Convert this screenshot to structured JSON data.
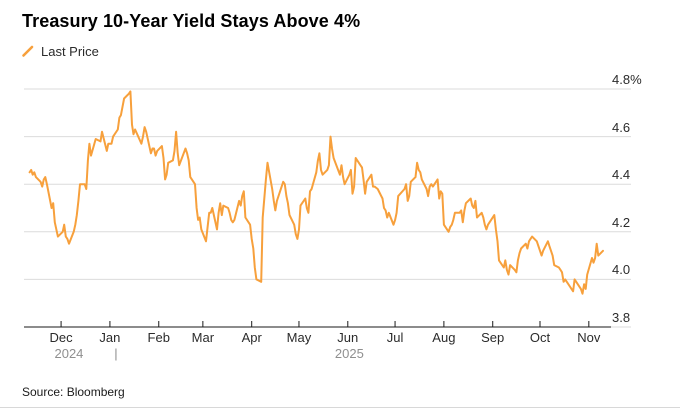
{
  "header": {
    "title": "Treasury 10-Year Yield Stays Above 4%"
  },
  "source": {
    "text": "Source: Bloomberg"
  },
  "colors": {
    "line": "#F7A03C",
    "grid": "#DBDBDB",
    "axis": "#1A1A1A",
    "tick": "#1A1A1A",
    "month_label": "#2B2B2B",
    "year_label": "#8F8F8F",
    "background": "#FFFFFF"
  },
  "chart_data": {
    "type": "line",
    "title": "Treasury 10-Year Yield Stays Above 4%",
    "unit": "%",
    "ylim": [
      3.8,
      4.8
    ],
    "grid": "horizontal",
    "legend_position": "top-left",
    "y_ticks": [
      {
        "value": 4.8,
        "label": "4.8%"
      },
      {
        "value": 4.6,
        "label": "4.6"
      },
      {
        "value": 4.4,
        "label": "4.4"
      },
      {
        "value": 4.2,
        "label": "4.2"
      },
      {
        "value": 4.0,
        "label": "4.0"
      },
      {
        "value": 3.8,
        "label": "3.8"
      }
    ],
    "x_window": [
      "2024-11-10",
      "2025-11-10"
    ],
    "x_ticks": [
      {
        "date": "2024-12-01",
        "label": "Dec"
      },
      {
        "date": "2025-01-01",
        "label": "Jan"
      },
      {
        "date": "2025-02-01",
        "label": "Feb"
      },
      {
        "date": "2025-03-01",
        "label": "Mar"
      },
      {
        "date": "2025-04-01",
        "label": "Apr"
      },
      {
        "date": "2025-05-01",
        "label": "May"
      },
      {
        "date": "2025-06-01",
        "label": "Jun"
      },
      {
        "date": "2025-07-01",
        "label": "Jul"
      },
      {
        "date": "2025-08-01",
        "label": "Aug"
      },
      {
        "date": "2025-09-01",
        "label": "Sep"
      },
      {
        "date": "2025-10-01",
        "label": "Oct"
      },
      {
        "date": "2025-11-01",
        "label": "Nov"
      }
    ],
    "year_labels": [
      {
        "label": "2024",
        "from": "2024-11-10",
        "to": "2025-01-01"
      },
      {
        "label": "|",
        "at": "2025-01-01"
      },
      {
        "label": "2025",
        "from": "2025-01-01",
        "to": "2025-11-01"
      }
    ],
    "series": [
      {
        "name": "Last Price",
        "color": "#F7A03C",
        "points": [
          [
            "2024-11-11",
            4.45
          ],
          [
            "2024-11-12",
            4.46
          ],
          [
            "2024-11-13",
            4.44
          ],
          [
            "2024-11-14",
            4.45
          ],
          [
            "2024-11-15",
            4.43
          ],
          [
            "2024-11-18",
            4.41
          ],
          [
            "2024-11-19",
            4.39
          ],
          [
            "2024-11-20",
            4.42
          ],
          [
            "2024-11-21",
            4.43
          ],
          [
            "2024-11-22",
            4.4
          ],
          [
            "2024-11-25",
            4.3
          ],
          [
            "2024-11-26",
            4.32
          ],
          [
            "2024-11-27",
            4.24
          ],
          [
            "2024-11-29",
            4.18
          ],
          [
            "2024-12-02",
            4.2
          ],
          [
            "2024-12-03",
            4.23
          ],
          [
            "2024-12-04",
            4.18
          ],
          [
            "2024-12-05",
            4.17
          ],
          [
            "2024-12-06",
            4.15
          ],
          [
            "2024-12-09",
            4.2
          ],
          [
            "2024-12-10",
            4.23
          ],
          [
            "2024-12-11",
            4.27
          ],
          [
            "2024-12-12",
            4.33
          ],
          [
            "2024-12-13",
            4.4
          ],
          [
            "2024-12-16",
            4.4
          ],
          [
            "2024-12-17",
            4.38
          ],
          [
            "2024-12-18",
            4.5
          ],
          [
            "2024-12-19",
            4.57
          ],
          [
            "2024-12-20",
            4.52
          ],
          [
            "2024-12-23",
            4.59
          ],
          [
            "2024-12-26",
            4.58
          ],
          [
            "2024-12-27",
            4.62
          ],
          [
            "2024-12-30",
            4.54
          ],
          [
            "2024-12-31",
            4.57
          ],
          [
            "2025-01-02",
            4.57
          ],
          [
            "2025-01-03",
            4.6
          ],
          [
            "2025-01-06",
            4.63
          ],
          [
            "2025-01-07",
            4.68
          ],
          [
            "2025-01-08",
            4.69
          ],
          [
            "2025-01-10",
            4.76
          ],
          [
            "2025-01-13",
            4.78
          ],
          [
            "2025-01-14",
            4.79
          ],
          [
            "2025-01-15",
            4.65
          ],
          [
            "2025-01-16",
            4.61
          ],
          [
            "2025-01-17",
            4.63
          ],
          [
            "2025-01-21",
            4.57
          ],
          [
            "2025-01-22",
            4.6
          ],
          [
            "2025-01-23",
            4.64
          ],
          [
            "2025-01-24",
            4.62
          ],
          [
            "2025-01-27",
            4.53
          ],
          [
            "2025-01-28",
            4.55
          ],
          [
            "2025-01-29",
            4.55
          ],
          [
            "2025-01-30",
            4.52
          ],
          [
            "2025-01-31",
            4.54
          ],
          [
            "2025-02-03",
            4.56
          ],
          [
            "2025-02-04",
            4.51
          ],
          [
            "2025-02-05",
            4.42
          ],
          [
            "2025-02-06",
            4.44
          ],
          [
            "2025-02-07",
            4.49
          ],
          [
            "2025-02-10",
            4.5
          ],
          [
            "2025-02-11",
            4.54
          ],
          [
            "2025-02-12",
            4.62
          ],
          [
            "2025-02-13",
            4.53
          ],
          [
            "2025-02-14",
            4.48
          ],
          [
            "2025-02-18",
            4.55
          ],
          [
            "2025-02-19",
            4.53
          ],
          [
            "2025-02-20",
            4.5
          ],
          [
            "2025-02-21",
            4.43
          ],
          [
            "2025-02-24",
            4.4
          ],
          [
            "2025-02-25",
            4.3
          ],
          [
            "2025-02-26",
            4.25
          ],
          [
            "2025-02-27",
            4.26
          ],
          [
            "2025-02-28",
            4.21
          ],
          [
            "2025-03-03",
            4.16
          ],
          [
            "2025-03-04",
            4.22
          ],
          [
            "2025-03-05",
            4.28
          ],
          [
            "2025-03-06",
            4.28
          ],
          [
            "2025-03-07",
            4.3
          ],
          [
            "2025-03-10",
            4.21
          ],
          [
            "2025-03-11",
            4.28
          ],
          [
            "2025-03-12",
            4.32
          ],
          [
            "2025-03-13",
            4.27
          ],
          [
            "2025-03-14",
            4.31
          ],
          [
            "2025-03-17",
            4.3
          ],
          [
            "2025-03-18",
            4.28
          ],
          [
            "2025-03-19",
            4.25
          ],
          [
            "2025-03-20",
            4.24
          ],
          [
            "2025-03-21",
            4.25
          ],
          [
            "2025-03-24",
            4.33
          ],
          [
            "2025-03-25",
            4.31
          ],
          [
            "2025-03-26",
            4.35
          ],
          [
            "2025-03-27",
            4.37
          ],
          [
            "2025-03-28",
            4.26
          ],
          [
            "2025-03-31",
            4.23
          ],
          [
            "2025-04-01",
            4.17
          ],
          [
            "2025-04-02",
            4.13
          ],
          [
            "2025-04-03",
            4.05
          ],
          [
            "2025-04-04",
            4.0
          ],
          [
            "2025-04-07",
            3.99
          ],
          [
            "2025-04-08",
            4.26
          ],
          [
            "2025-04-09",
            4.34
          ],
          [
            "2025-04-10",
            4.42
          ],
          [
            "2025-04-11",
            4.49
          ],
          [
            "2025-04-14",
            4.38
          ],
          [
            "2025-04-15",
            4.33
          ],
          [
            "2025-04-16",
            4.29
          ],
          [
            "2025-04-17",
            4.33
          ],
          [
            "2025-04-21",
            4.41
          ],
          [
            "2025-04-22",
            4.4
          ],
          [
            "2025-04-23",
            4.35
          ],
          [
            "2025-04-24",
            4.32
          ],
          [
            "2025-04-25",
            4.27
          ],
          [
            "2025-04-28",
            4.23
          ],
          [
            "2025-04-29",
            4.19
          ],
          [
            "2025-04-30",
            4.17
          ],
          [
            "2025-05-01",
            4.21
          ],
          [
            "2025-05-02",
            4.31
          ],
          [
            "2025-05-05",
            4.34
          ],
          [
            "2025-05-06",
            4.3
          ],
          [
            "2025-05-07",
            4.28
          ],
          [
            "2025-05-08",
            4.37
          ],
          [
            "2025-05-09",
            4.38
          ],
          [
            "2025-05-12",
            4.45
          ],
          [
            "2025-05-13",
            4.5
          ],
          [
            "2025-05-14",
            4.53
          ],
          [
            "2025-05-15",
            4.46
          ],
          [
            "2025-05-16",
            4.44
          ],
          [
            "2025-05-19",
            4.46
          ],
          [
            "2025-05-20",
            4.48
          ],
          [
            "2025-05-21",
            4.6
          ],
          [
            "2025-05-22",
            4.55
          ],
          [
            "2025-05-23",
            4.51
          ],
          [
            "2025-05-27",
            4.44
          ],
          [
            "2025-05-28",
            4.48
          ],
          [
            "2025-05-29",
            4.43
          ],
          [
            "2025-05-30",
            4.4
          ],
          [
            "2025-06-02",
            4.44
          ],
          [
            "2025-06-03",
            4.46
          ],
          [
            "2025-06-04",
            4.36
          ],
          [
            "2025-06-05",
            4.39
          ],
          [
            "2025-06-06",
            4.51
          ],
          [
            "2025-06-09",
            4.48
          ],
          [
            "2025-06-10",
            4.47
          ],
          [
            "2025-06-11",
            4.42
          ],
          [
            "2025-06-12",
            4.36
          ],
          [
            "2025-06-13",
            4.41
          ],
          [
            "2025-06-16",
            4.44
          ],
          [
            "2025-06-17",
            4.39
          ],
          [
            "2025-06-18",
            4.39
          ],
          [
            "2025-06-20",
            4.38
          ],
          [
            "2025-06-23",
            4.34
          ],
          [
            "2025-06-24",
            4.3
          ],
          [
            "2025-06-25",
            4.29
          ],
          [
            "2025-06-26",
            4.26
          ],
          [
            "2025-06-27",
            4.28
          ],
          [
            "2025-06-30",
            4.23
          ],
          [
            "2025-07-01",
            4.25
          ],
          [
            "2025-07-02",
            4.28
          ],
          [
            "2025-07-03",
            4.35
          ],
          [
            "2025-07-07",
            4.38
          ],
          [
            "2025-07-08",
            4.4
          ],
          [
            "2025-07-09",
            4.33
          ],
          [
            "2025-07-10",
            4.35
          ],
          [
            "2025-07-11",
            4.41
          ],
          [
            "2025-07-14",
            4.43
          ],
          [
            "2025-07-15",
            4.49
          ],
          [
            "2025-07-16",
            4.46
          ],
          [
            "2025-07-17",
            4.45
          ],
          [
            "2025-07-18",
            4.42
          ],
          [
            "2025-07-21",
            4.38
          ],
          [
            "2025-07-22",
            4.35
          ],
          [
            "2025-07-23",
            4.39
          ],
          [
            "2025-07-24",
            4.4
          ],
          [
            "2025-07-25",
            4.39
          ],
          [
            "2025-07-28",
            4.42
          ],
          [
            "2025-07-29",
            4.34
          ],
          [
            "2025-07-30",
            4.37
          ],
          [
            "2025-07-31",
            4.36
          ],
          [
            "2025-08-01",
            4.23
          ],
          [
            "2025-08-04",
            4.2
          ],
          [
            "2025-08-05",
            4.22
          ],
          [
            "2025-08-06",
            4.23
          ],
          [
            "2025-08-07",
            4.25
          ],
          [
            "2025-08-08",
            4.28
          ],
          [
            "2025-08-11",
            4.28
          ],
          [
            "2025-08-12",
            4.29
          ],
          [
            "2025-08-13",
            4.24
          ],
          [
            "2025-08-14",
            4.29
          ],
          [
            "2025-08-15",
            4.32
          ],
          [
            "2025-08-18",
            4.34
          ],
          [
            "2025-08-19",
            4.31
          ],
          [
            "2025-08-20",
            4.3
          ],
          [
            "2025-08-21",
            4.33
          ],
          [
            "2025-08-22",
            4.26
          ],
          [
            "2025-08-25",
            4.28
          ],
          [
            "2025-08-26",
            4.26
          ],
          [
            "2025-08-27",
            4.23
          ],
          [
            "2025-08-28",
            4.21
          ],
          [
            "2025-08-29",
            4.23
          ],
          [
            "2025-09-02",
            4.27
          ],
          [
            "2025-09-03",
            4.21
          ],
          [
            "2025-09-04",
            4.16
          ],
          [
            "2025-09-05",
            4.08
          ],
          [
            "2025-09-08",
            4.05
          ],
          [
            "2025-09-09",
            4.08
          ],
          [
            "2025-09-10",
            4.04
          ],
          [
            "2025-09-11",
            4.02
          ],
          [
            "2025-09-12",
            4.06
          ],
          [
            "2025-09-15",
            4.04
          ],
          [
            "2025-09-16",
            4.03
          ],
          [
            "2025-09-17",
            4.08
          ],
          [
            "2025-09-18",
            4.11
          ],
          [
            "2025-09-19",
            4.13
          ],
          [
            "2025-09-22",
            4.15
          ],
          [
            "2025-09-23",
            4.13
          ],
          [
            "2025-09-24",
            4.16
          ],
          [
            "2025-09-25",
            4.17
          ],
          [
            "2025-09-26",
            4.18
          ],
          [
            "2025-09-29",
            4.16
          ],
          [
            "2025-09-30",
            4.14
          ],
          [
            "2025-10-01",
            4.12
          ],
          [
            "2025-10-02",
            4.1
          ],
          [
            "2025-10-03",
            4.12
          ],
          [
            "2025-10-06",
            4.16
          ],
          [
            "2025-10-07",
            4.14
          ],
          [
            "2025-10-08",
            4.12
          ],
          [
            "2025-10-09",
            4.1
          ],
          [
            "2025-10-10",
            4.06
          ],
          [
            "2025-10-13",
            4.05
          ],
          [
            "2025-10-14",
            4.04
          ],
          [
            "2025-10-15",
            4.03
          ],
          [
            "2025-10-16",
            3.99
          ],
          [
            "2025-10-17",
            4.0
          ],
          [
            "2025-10-20",
            3.97
          ],
          [
            "2025-10-21",
            3.96
          ],
          [
            "2025-10-22",
            3.95
          ],
          [
            "2025-10-23",
            4.0
          ],
          [
            "2025-10-24",
            3.99
          ],
          [
            "2025-10-27",
            3.96
          ],
          [
            "2025-10-28",
            3.94
          ],
          [
            "2025-10-29",
            3.98
          ],
          [
            "2025-10-30",
            3.96
          ],
          [
            "2025-10-31",
            4.02
          ],
          [
            "2025-11-03",
            4.09
          ],
          [
            "2025-11-04",
            4.07
          ],
          [
            "2025-11-05",
            4.09
          ],
          [
            "2025-11-06",
            4.15
          ],
          [
            "2025-11-07",
            4.1
          ],
          [
            "2025-11-10",
            4.12
          ]
        ]
      }
    ]
  }
}
